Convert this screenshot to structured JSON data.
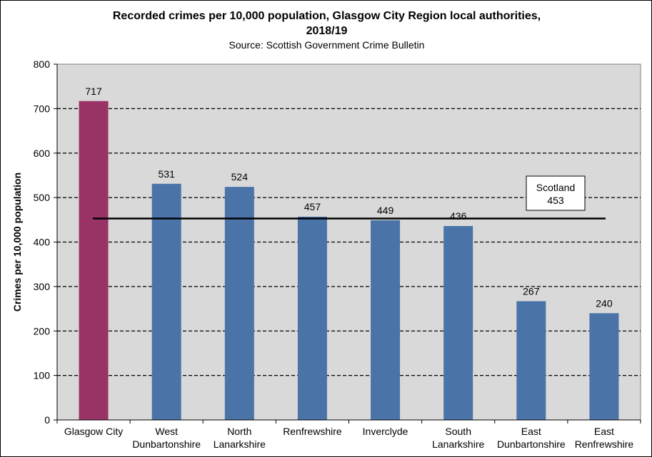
{
  "chart_data": {
    "type": "bar",
    "title_line1": "Recorded crimes per 10,000 population, Glasgow City Region local authorities,",
    "title_line2": "2018/19",
    "subtitle": "Source: Scottish Government Crime Bulletin",
    "xlabel": "",
    "ylabel": "Crimes per 10,000 population",
    "ylim": [
      0,
      800
    ],
    "yticks": [
      0,
      100,
      200,
      300,
      400,
      500,
      600,
      700,
      800
    ],
    "categories": [
      [
        "Glasgow City"
      ],
      [
        "West",
        "Dunbartonshire"
      ],
      [
        "North",
        "Lanarkshire"
      ],
      [
        "Renfrewshire"
      ],
      [
        "Inverclyde"
      ],
      [
        "South",
        "Lanarkshire"
      ],
      [
        "East",
        "Dunbartonshire"
      ],
      [
        "East",
        "Renfrewshire"
      ]
    ],
    "values": [
      717,
      531,
      524,
      457,
      449,
      436,
      267,
      240
    ],
    "bar_colors": [
      "#993366",
      "#4A73A8",
      "#4A73A8",
      "#4A73A8",
      "#4A73A8",
      "#4A73A8",
      "#4A73A8",
      "#4A73A8"
    ],
    "plot_background": "#D9D9D9",
    "gridlines": "dashed",
    "reference_line": {
      "label": "Scotland",
      "value": 453
    }
  }
}
